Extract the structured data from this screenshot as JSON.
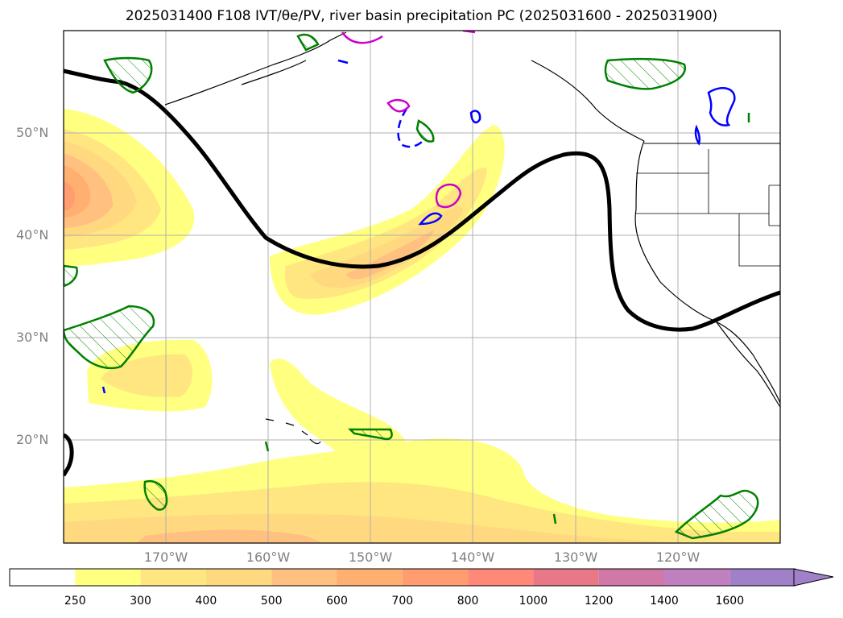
{
  "title": "2025031400 F108 IVT/θe/PV, river basin precipitation PC (2025031600 - 2025031900)",
  "map": {
    "lat_labels": [
      "50°N",
      "40°N",
      "30°N",
      "20°N"
    ],
    "lon_labels": [
      "170°W",
      "160°W",
      "150°W",
      "140°W",
      "130°W",
      "120°W"
    ],
    "colors": {
      "ivt_250": "#ffff80",
      "ivt_300": "#ffe680",
      "ivt_400": "#ffd080",
      "ivt_500": "#ffb878",
      "ivt_600": "#ffa070",
      "ivt_700": "#ff8870",
      "theta_contour": "#000000",
      "pv_contour": "#0000ff",
      "precip_contour": "#008000",
      "magenta_contour": "#cc00cc",
      "grid": "#b0b0b0"
    }
  },
  "colorbar": {
    "levels": [
      "250",
      "300",
      "400",
      "500",
      "600",
      "700",
      "800",
      "1000",
      "1200",
      "1400",
      "1600"
    ],
    "colors": [
      "#ffffff",
      "#ffff80",
      "#ffe680",
      "#ffd880",
      "#ffc080",
      "#ffb070",
      "#ff9c70",
      "#ff8878",
      "#e87888",
      "#d078a8",
      "#c080c0",
      "#a080c8"
    ],
    "extend": "max"
  }
}
